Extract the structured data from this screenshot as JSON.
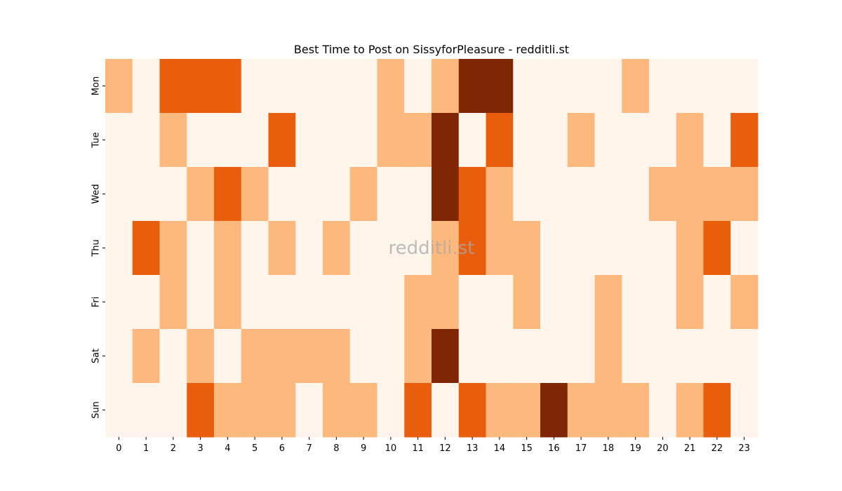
{
  "chart_data": {
    "type": "heatmap",
    "title": "Best Time to Post on SissyforPleasure - redditli.st",
    "watermark": "redditli.st",
    "x_labels": [
      "0",
      "1",
      "2",
      "3",
      "4",
      "5",
      "6",
      "7",
      "8",
      "9",
      "10",
      "11",
      "12",
      "13",
      "14",
      "15",
      "16",
      "17",
      "18",
      "19",
      "20",
      "21",
      "22",
      "23"
    ],
    "y_labels": [
      "Mon",
      "Tue",
      "Wed",
      "Thu",
      "Fri",
      "Sat",
      "Sun"
    ],
    "values": [
      [
        1,
        0,
        2,
        2,
        2,
        0,
        0,
        0,
        0,
        0,
        1,
        0,
        1,
        3,
        3,
        0,
        0,
        0,
        0,
        1,
        0,
        0,
        0,
        0
      ],
      [
        0,
        0,
        1,
        0,
        0,
        0,
        2,
        0,
        0,
        0,
        1,
        1,
        3,
        0,
        2,
        0,
        0,
        1,
        0,
        0,
        0,
        1,
        0,
        2
      ],
      [
        0,
        0,
        0,
        1,
        2,
        1,
        0,
        0,
        0,
        1,
        0,
        0,
        3,
        2,
        1,
        0,
        0,
        0,
        0,
        0,
        1,
        1,
        1,
        1
      ],
      [
        0,
        2,
        1,
        0,
        1,
        0,
        1,
        0,
        1,
        0,
        0,
        0,
        1,
        2,
        1,
        1,
        0,
        0,
        0,
        0,
        0,
        1,
        2,
        0
      ],
      [
        0,
        0,
        1,
        0,
        1,
        0,
        0,
        0,
        0,
        0,
        0,
        1,
        1,
        0,
        0,
        1,
        0,
        0,
        1,
        0,
        0,
        1,
        0,
        1
      ],
      [
        0,
        1,
        0,
        1,
        0,
        1,
        1,
        1,
        1,
        0,
        0,
        1,
        3,
        0,
        0,
        0,
        0,
        0,
        1,
        0,
        0,
        0,
        0,
        0
      ],
      [
        0,
        0,
        0,
        2,
        1,
        1,
        1,
        0,
        1,
        1,
        0,
        2,
        0,
        2,
        1,
        1,
        3,
        1,
        1,
        1,
        0,
        1,
        2,
        0
      ]
    ],
    "colors": [
      "#fff5eb",
      "#fdb97d",
      "#e95e0d",
      "#7f2704"
    ]
  }
}
